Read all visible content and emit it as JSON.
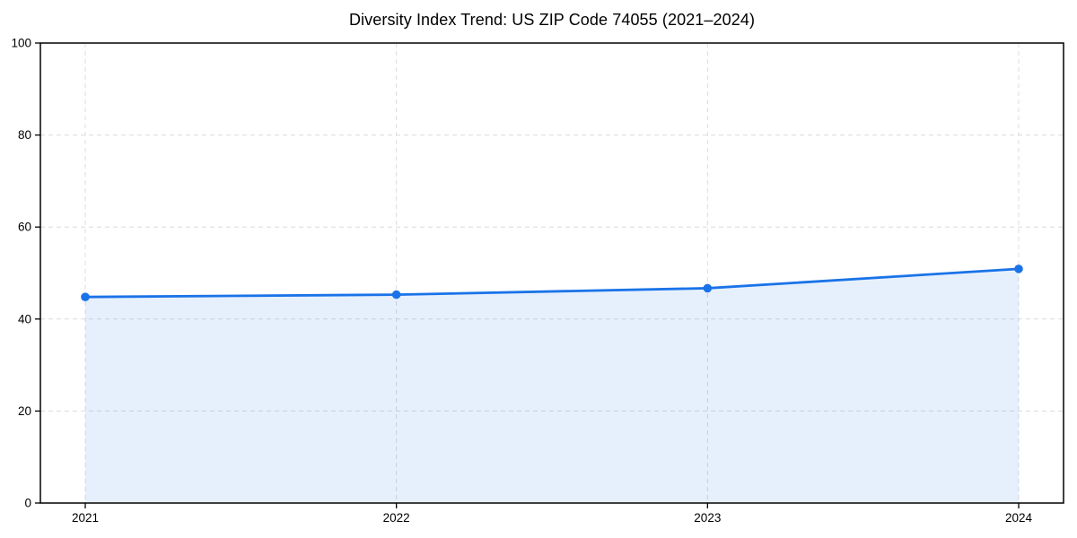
{
  "chart_data": {
    "type": "area",
    "title": "Diversity Index Trend: US ZIP Code 74055 (2021–2024)",
    "categories": [
      "2021",
      "2022",
      "2023",
      "2024"
    ],
    "series": [
      {
        "name": "Diversity Index",
        "values": [
          44.8,
          45.3,
          46.7,
          50.9
        ]
      }
    ],
    "xlabel": "",
    "ylabel": "",
    "ylim": [
      0,
      100
    ],
    "yticks": [
      0,
      20,
      40,
      60,
      80,
      100
    ],
    "grid": true,
    "grid_style": "dashed",
    "legend": false,
    "colors": {
      "line": "#1a73e8",
      "marker": "#1a73e8",
      "area_fill": "rgba(26,115,232,0.11)",
      "grid": "#dcdcdc",
      "spine": "#000000",
      "tick": "#000000",
      "text": "#000000",
      "background": "#ffffff"
    }
  }
}
